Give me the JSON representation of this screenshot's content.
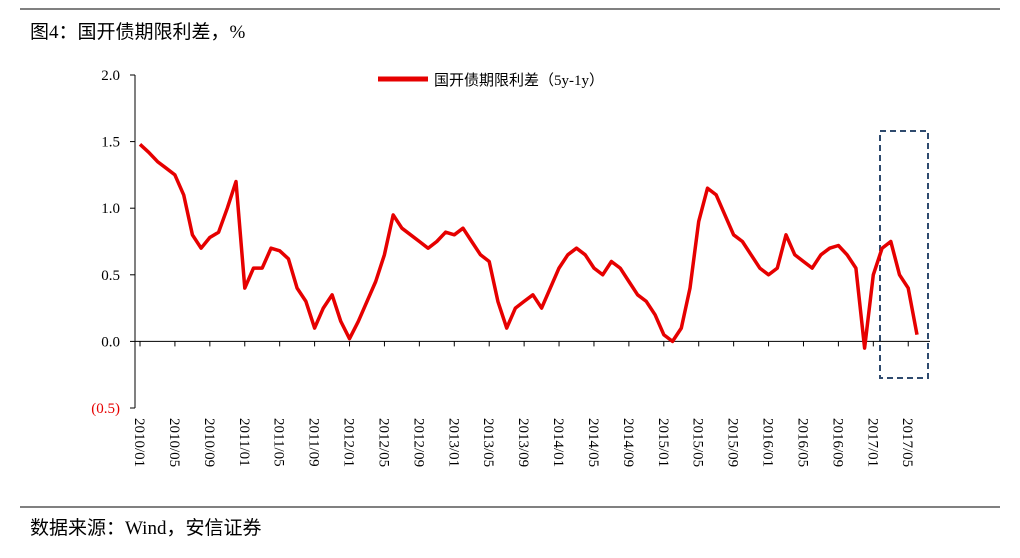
{
  "chart_data": {
    "type": "line",
    "title": "图4：国开债期限利差，%",
    "source": "数据来源：Wind，安信证券",
    "x": [
      "2010/01",
      "2010/02",
      "2010/03",
      "2010/04",
      "2010/05",
      "2010/06",
      "2010/07",
      "2010/08",
      "2010/09",
      "2010/10",
      "2010/11",
      "2010/12",
      "2011/01",
      "2011/02",
      "2011/03",
      "2011/04",
      "2011/05",
      "2011/06",
      "2011/07",
      "2011/08",
      "2011/09",
      "2011/10",
      "2011/11",
      "2011/12",
      "2012/01",
      "2012/02",
      "2012/03",
      "2012/04",
      "2012/05",
      "2012/06",
      "2012/07",
      "2012/08",
      "2012/09",
      "2012/10",
      "2012/11",
      "2012/12",
      "2013/01",
      "2013/02",
      "2013/03",
      "2013/04",
      "2013/05",
      "2013/06",
      "2013/07",
      "2013/08",
      "2013/09",
      "2013/10",
      "2013/11",
      "2013/12",
      "2014/01",
      "2014/02",
      "2014/03",
      "2014/04",
      "2014/05",
      "2014/06",
      "2014/07",
      "2014/08",
      "2014/09",
      "2014/10",
      "2014/11",
      "2014/12",
      "2015/01",
      "2015/02",
      "2015/03",
      "2015/04",
      "2015/05",
      "2015/06",
      "2015/07",
      "2015/08",
      "2015/09",
      "2015/10",
      "2015/11",
      "2015/12",
      "2016/01",
      "2016/02",
      "2016/03",
      "2016/04",
      "2016/05",
      "2016/06",
      "2016/07",
      "2016/08",
      "2016/09",
      "2016/10",
      "2016/11",
      "2016/12",
      "2017/01",
      "2017/02",
      "2017/03",
      "2017/04",
      "2017/05",
      "2017/06"
    ],
    "series": [
      {
        "name": "国开债期限利差（5y-1y）",
        "color": "#e60000",
        "values": [
          1.48,
          1.42,
          1.35,
          1.3,
          1.25,
          1.1,
          0.8,
          0.7,
          0.78,
          0.82,
          1.0,
          1.2,
          0.4,
          0.55,
          0.55,
          0.7,
          0.68,
          0.62,
          0.4,
          0.3,
          0.1,
          0.25,
          0.35,
          0.15,
          0.02,
          0.15,
          0.3,
          0.45,
          0.65,
          0.95,
          0.85,
          0.8,
          0.75,
          0.7,
          0.75,
          0.82,
          0.8,
          0.85,
          0.75,
          0.65,
          0.6,
          0.3,
          0.1,
          0.25,
          0.3,
          0.35,
          0.25,
          0.4,
          0.55,
          0.65,
          0.7,
          0.65,
          0.55,
          0.5,
          0.6,
          0.55,
          0.45,
          0.35,
          0.3,
          0.2,
          0.05,
          0.0,
          0.1,
          0.4,
          0.9,
          1.15,
          1.1,
          0.95,
          0.8,
          0.75,
          0.65,
          0.55,
          0.5,
          0.55,
          0.8,
          0.65,
          0.6,
          0.55,
          0.65,
          0.7,
          0.72,
          0.65,
          0.55,
          -0.05,
          0.5,
          0.7,
          0.75,
          0.5,
          0.4,
          0.05
        ]
      }
    ],
    "xticks": [
      "2010/01",
      "2010/05",
      "2010/09",
      "2011/01",
      "2011/05",
      "2011/09",
      "2012/01",
      "2012/05",
      "2012/09",
      "2013/01",
      "2013/05",
      "2013/09",
      "2014/01",
      "2014/05",
      "2014/09",
      "2015/01",
      "2015/05",
      "2015/09",
      "2016/01",
      "2016/05",
      "2016/09",
      "2017/01",
      "2017/05"
    ],
    "ylim": [
      -0.5,
      2.0
    ],
    "yticks": [
      {
        "value": -0.5,
        "label": "(0.5)"
      },
      {
        "value": 0,
        "label": "0.0"
      },
      {
        "value": 0.5,
        "label": "0.5"
      },
      {
        "value": 1,
        "label": "1.0"
      },
      {
        "value": 1.5,
        "label": "1.5"
      },
      {
        "value": 2,
        "label": "2.0"
      }
    ],
    "legend": "top"
  }
}
